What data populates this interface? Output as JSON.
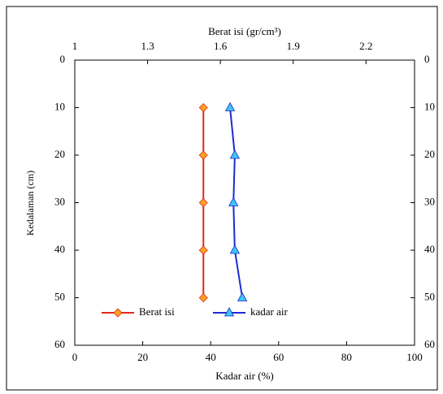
{
  "chart_data": {
    "type": "line",
    "orientation": "vertical",
    "x2label": "Berat isi (gr/cm³)",
    "xlabel": "Kadar air (%)",
    "ylabel": "Kedalaman (cm)",
    "y": [
      10,
      20,
      30,
      40,
      50
    ],
    "ylim": [
      0,
      60
    ],
    "yticks": [
      0,
      10,
      20,
      30,
      40,
      50,
      60
    ],
    "y_inverted": true,
    "xlim": [
      0,
      100
    ],
    "xticks": [
      0,
      20,
      40,
      60,
      80,
      100
    ],
    "x2lim": [
      1,
      2.4
    ],
    "x2ticks": [
      1,
      1.3,
      1.6,
      1.9,
      2.2
    ],
    "legend": "bottom-left",
    "series": [
      {
        "name": "Berat isi",
        "color": "#e4261c",
        "marker": "diamond",
        "marker_color": "#f7a221",
        "axis": "x2",
        "values": [
          1.53,
          1.53,
          1.53,
          1.53,
          1.53
        ]
      },
      {
        "name": "kadar air",
        "color": "#1c2bd0",
        "marker": "triangle",
        "marker_color": "#3ec6f2",
        "axis": "x",
        "values": [
          45.7,
          47.1,
          46.7,
          47.1,
          49.3
        ]
      }
    ]
  }
}
